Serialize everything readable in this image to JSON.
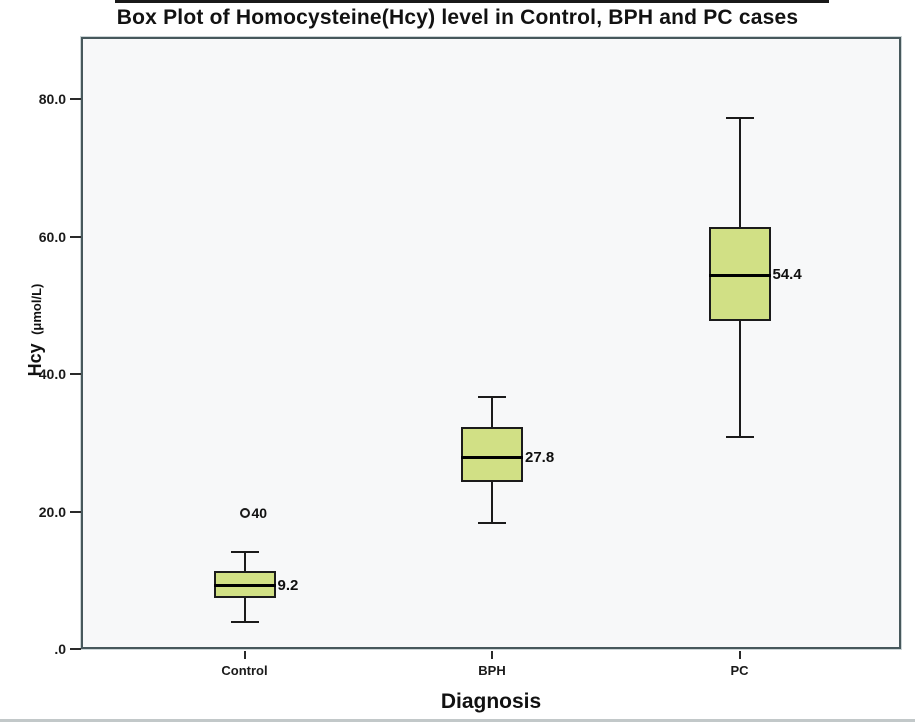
{
  "figure": {
    "background": "#ffffff"
  },
  "chart_data": {
    "type": "box",
    "title": "Box Plot of Homocysteine(Hcy) level in Control, BPH and PC cases",
    "xlabel": "Diagnosis",
    "ylabel": "Hcy",
    "ylabel_unit": "(μmol/L)",
    "categories": [
      "Control",
      "BPH",
      "PC"
    ],
    "ylim": [
      0,
      89
    ],
    "grid": false,
    "legend": false,
    "y_ticks": [
      {
        "value": 80,
        "label": "80.0"
      },
      {
        "value": 60,
        "label": "60.0"
      },
      {
        "value": 40,
        "label": "40.0"
      },
      {
        "value": 20,
        "label": "20.0"
      },
      {
        "value": 0,
        "label": ".0"
      }
    ],
    "boxes": [
      {
        "category": "Control",
        "whisker_low": 4.0,
        "q1": 7.4,
        "median": 9.2,
        "q3": 11.3,
        "whisker_high": 14.1,
        "median_label": "9.2",
        "outliers": [
          {
            "value": 19.8,
            "label": "40"
          }
        ]
      },
      {
        "category": "BPH",
        "whisker_low": 18.3,
        "q1": 24.3,
        "median": 27.8,
        "q3": 32.3,
        "whisker_high": 36.7,
        "median_label": "27.8",
        "outliers": []
      },
      {
        "category": "PC",
        "whisker_low": 30.8,
        "q1": 47.7,
        "median": 54.4,
        "q3": 61.4,
        "whisker_high": 77.3,
        "median_label": "54.4",
        "outliers": []
      }
    ],
    "colors": {
      "box_fill": "#d1e085",
      "box_border": "#1b1b1b",
      "median_line": "#000000",
      "plot_background": "#f7f8f9",
      "frame_border": "#47585c",
      "text": "#141414"
    }
  }
}
